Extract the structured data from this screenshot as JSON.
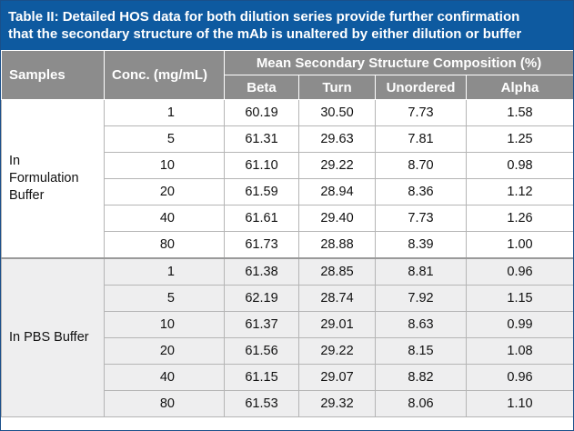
{
  "caption": {
    "line1": "Table II: Detailed HOS data for both dilution series provide further confirmation",
    "line2": "that the secondary structure of the mAb is unaltered by either dilution or buffer"
  },
  "header": {
    "samples": "Samples",
    "conc": "Conc. (mg/mL)",
    "group": "Mean Secondary Structure Composition (%)",
    "beta": "Beta",
    "turn": "Turn",
    "unordered": "Unordered",
    "alpha": "Alpha"
  },
  "groups": [
    {
      "label_lines": [
        "In",
        "Formulation",
        "Buffer"
      ],
      "rows": [
        {
          "conc": "1",
          "beta": "60.19",
          "turn": "30.50",
          "unordered": "7.73",
          "alpha": "1.58"
        },
        {
          "conc": "5",
          "beta": "61.31",
          "turn": "29.63",
          "unordered": "7.81",
          "alpha": "1.25"
        },
        {
          "conc": "10",
          "beta": "61.10",
          "turn": "29.22",
          "unordered": "8.70",
          "alpha": "0.98"
        },
        {
          "conc": "20",
          "beta": "61.59",
          "turn": "28.94",
          "unordered": "8.36",
          "alpha": "1.12"
        },
        {
          "conc": "40",
          "beta": "61.61",
          "turn": "29.40",
          "unordered": "7.73",
          "alpha": "1.26"
        },
        {
          "conc": "80",
          "beta": "61.73",
          "turn": "28.88",
          "unordered": "8.39",
          "alpha": "1.00"
        }
      ]
    },
    {
      "label_lines": [
        "In PBS Buffer"
      ],
      "rows": [
        {
          "conc": "1",
          "beta": "61.38",
          "turn": "28.85",
          "unordered": "8.81",
          "alpha": "0.96"
        },
        {
          "conc": "5",
          "beta": "62.19",
          "turn": "28.74",
          "unordered": "7.92",
          "alpha": "1.15"
        },
        {
          "conc": "10",
          "beta": "61.37",
          "turn": "29.01",
          "unordered": "8.63",
          "alpha": "0.99"
        },
        {
          "conc": "20",
          "beta": "61.56",
          "turn": "29.22",
          "unordered": "8.15",
          "alpha": "1.08"
        },
        {
          "conc": "40",
          "beta": "61.15",
          "turn": "29.07",
          "unordered": "8.82",
          "alpha": "0.96"
        },
        {
          "conc": "80",
          "beta": "61.53",
          "turn": "29.32",
          "unordered": "8.06",
          "alpha": "1.10"
        }
      ]
    }
  ]
}
